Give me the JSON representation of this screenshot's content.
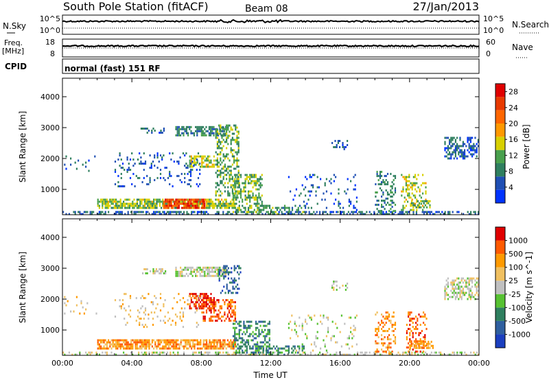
{
  "header": {
    "station": "South Pole Station (fitACF)",
    "beam": "Beam 08",
    "date": "27/Jan/2013"
  },
  "sky_panel": {
    "left_label": "N.Sky",
    "right_label": "N.Search",
    "left_ticks": [
      "10^5",
      "10^0"
    ],
    "right_ticks": [
      "10^5",
      "10^0"
    ]
  },
  "freq_panel": {
    "label_line1": "Freq.",
    "label_line2": "[MHz]",
    "right_label": "Nave",
    "left_ticks": [
      "18",
      "8"
    ],
    "right_ticks": [
      "60",
      "0"
    ]
  },
  "cpid": {
    "label": "CPID",
    "text": "normal (fast) 151 RF"
  },
  "colors": {
    "power": [
      "#0033ff",
      "#1f4fb4",
      "#2f7f5f",
      "#49a04d",
      "#d8d000",
      "#ff9900",
      "#ff6600",
      "#e83a00",
      "#e00000"
    ],
    "velocity": [
      "#1b3fbf",
      "#2f5f9f",
      "#2f7f5f",
      "#57c232",
      "#c0c0c0",
      "#f0c060",
      "#ff9a00",
      "#ff5a00",
      "#e00000"
    ]
  },
  "chart_data": [
    {
      "type": "heatmap",
      "name_panel": "power",
      "ylabel": "Slant Range [km]",
      "yticks": [
        1000,
        2000,
        3000,
        4000
      ],
      "ylim": [
        180,
        4600
      ],
      "xlim_hours": [
        0,
        24
      ],
      "colorbar": {
        "label": "Power [dB]",
        "ticks": [
          4,
          8,
          12,
          16,
          20,
          24,
          28
        ],
        "range": [
          0,
          30
        ]
      },
      "regions": [
        {
          "t0": 0.0,
          "t1": 24.0,
          "r0": 200,
          "r1": 300,
          "v": 6,
          "d": 0.5
        },
        {
          "t0": 2.0,
          "t1": 10.0,
          "r0": 400,
          "r1": 700,
          "v": 13,
          "d": 0.75
        },
        {
          "t0": 5.8,
          "t1": 8.2,
          "r0": 400,
          "r1": 700,
          "v": 24,
          "d": 0.8
        },
        {
          "t0": 6.5,
          "t1": 9.5,
          "r0": 2750,
          "r1": 3050,
          "v": 8,
          "d": 0.7
        },
        {
          "t0": 4.5,
          "t1": 6.0,
          "r0": 2800,
          "r1": 3000,
          "v": 6,
          "d": 0.45
        },
        {
          "t0": 7.3,
          "t1": 8.8,
          "r0": 1700,
          "r1": 2100,
          "v": 14,
          "d": 0.55
        },
        {
          "t0": 8.8,
          "t1": 10.2,
          "r0": 800,
          "r1": 3100,
          "v": 11,
          "d": 0.4
        },
        {
          "t0": 9.8,
          "t1": 11.5,
          "r0": 250,
          "r1": 1500,
          "v": 12,
          "d": 0.45
        },
        {
          "t0": 11.2,
          "t1": 14.0,
          "r0": 200,
          "r1": 500,
          "v": 10,
          "d": 0.4
        },
        {
          "t0": 3.0,
          "t1": 8.0,
          "r0": 1100,
          "r1": 2200,
          "v": 5,
          "d": 0.12
        },
        {
          "t0": 13.0,
          "t1": 17.0,
          "r0": 300,
          "r1": 1500,
          "v": 5,
          "d": 0.1
        },
        {
          "t0": 15.5,
          "t1": 16.5,
          "r0": 2300,
          "r1": 2600,
          "v": 6,
          "d": 0.25
        },
        {
          "t0": 18.0,
          "t1": 19.2,
          "r0": 200,
          "r1": 1600,
          "v": 9,
          "d": 0.3
        },
        {
          "t0": 19.5,
          "t1": 21.0,
          "r0": 300,
          "r1": 1500,
          "v": 14,
          "d": 0.35
        },
        {
          "t0": 20.0,
          "t1": 21.2,
          "r0": 400,
          "r1": 650,
          "v": 12,
          "d": 0.6
        },
        {
          "t0": 22.0,
          "t1": 24.0,
          "r0": 2000,
          "r1": 2700,
          "v": 6,
          "d": 0.55
        },
        {
          "t0": 0.0,
          "t1": 2.0,
          "r0": 1500,
          "r1": 2100,
          "v": 5,
          "d": 0.1
        }
      ]
    },
    {
      "type": "heatmap",
      "name_panel": "velocity",
      "ylabel": "Slant Range [km]",
      "xlabel": "Time UT",
      "yticks": [
        1000,
        2000,
        3000,
        4000
      ],
      "ylim": [
        180,
        4600
      ],
      "xlim_hours": [
        0,
        24
      ],
      "xticks": [
        "00:00",
        "04:00",
        "08:00",
        "12:00",
        "16:00",
        "20:00",
        "00:00"
      ],
      "colorbar": {
        "label": "Velocity [m s^-1]",
        "ticks": [
          "1000",
          "500",
          "100",
          "25",
          "-25",
          "-100",
          "-500",
          "-1000"
        ]
      },
      "regions": [
        {
          "t0": 0.0,
          "t1": 24.0,
          "r0": 200,
          "r1": 300,
          "v": 4,
          "d": 0.35
        },
        {
          "t0": 2.0,
          "t1": 10.0,
          "r0": 400,
          "r1": 700,
          "v": 6,
          "d": 0.75
        },
        {
          "t0": 6.5,
          "t1": 9.5,
          "r0": 2750,
          "r1": 3050,
          "v": 4,
          "d": 0.7
        },
        {
          "t0": 4.5,
          "t1": 6.0,
          "r0": 2800,
          "r1": 3000,
          "v": 4,
          "d": 0.45
        },
        {
          "t0": 7.3,
          "t1": 8.8,
          "r0": 1700,
          "r1": 2200,
          "v": 8,
          "d": 0.6
        },
        {
          "t0": 8.0,
          "t1": 10.0,
          "r0": 1300,
          "r1": 2000,
          "v": 7,
          "d": 0.45
        },
        {
          "t0": 9.0,
          "t1": 10.3,
          "r0": 2200,
          "r1": 3100,
          "v": 1,
          "d": 0.3
        },
        {
          "t0": 9.8,
          "t1": 12.0,
          "r0": 250,
          "r1": 1300,
          "v": 2,
          "d": 0.45
        },
        {
          "t0": 11.0,
          "t1": 14.0,
          "r0": 200,
          "r1": 500,
          "v": 2,
          "d": 0.35
        },
        {
          "t0": 3.0,
          "t1": 8.0,
          "r0": 1100,
          "r1": 2200,
          "v": 5,
          "d": 0.12
        },
        {
          "t0": 13.0,
          "t1": 17.0,
          "r0": 300,
          "r1": 1500,
          "v": 4,
          "d": 0.1
        },
        {
          "t0": 15.5,
          "t1": 16.5,
          "r0": 2300,
          "r1": 2600,
          "v": 4,
          "d": 0.25
        },
        {
          "t0": 18.0,
          "t1": 19.2,
          "r0": 200,
          "r1": 1600,
          "v": 6,
          "d": 0.3
        },
        {
          "t0": 19.8,
          "t1": 21.0,
          "r0": 300,
          "r1": 1600,
          "v": 7,
          "d": 0.35
        },
        {
          "t0": 20.0,
          "t1": 21.4,
          "r0": 400,
          "r1": 650,
          "v": 6,
          "d": 0.6
        },
        {
          "t0": 22.0,
          "t1": 24.0,
          "r0": 2000,
          "r1": 2700,
          "v": 4,
          "d": 0.55
        },
        {
          "t0": 0.0,
          "t1": 2.0,
          "r0": 1500,
          "r1": 2100,
          "v": 5,
          "d": 0.1
        }
      ]
    }
  ]
}
